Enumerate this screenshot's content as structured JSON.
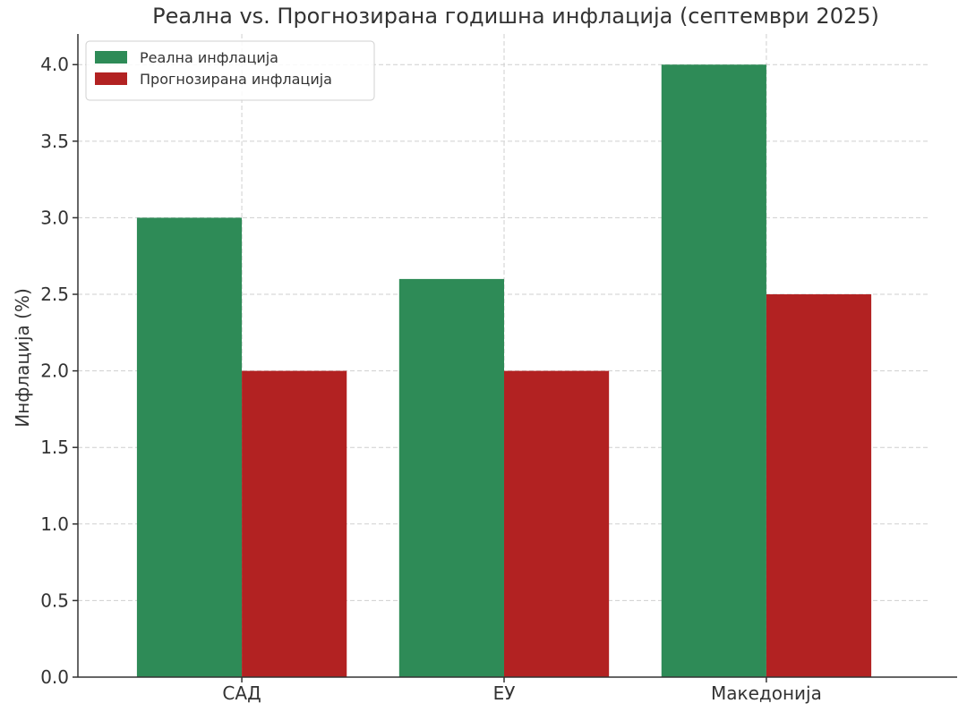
{
  "chart_data": {
    "type": "bar",
    "title": "Реална vs. Прогнозирана годишна инфлација (септември 2025)",
    "xlabel": "",
    "ylabel": "Инфлација (%)",
    "categories": [
      "САД",
      "ЕУ",
      "Македонија"
    ],
    "series": [
      {
        "name": "Реална инфлација",
        "values": [
          3.0,
          2.6,
          4.0
        ],
        "color": "#2e8b57"
      },
      {
        "name": "Прогнозирана инфлација",
        "values": [
          2.0,
          2.0,
          2.5
        ],
        "color": "#b22222"
      }
    ],
    "ylim": [
      0,
      4.2
    ],
    "yticks": [
      "0.0",
      "0.5",
      "1.0",
      "1.5",
      "2.0",
      "2.5",
      "3.0",
      "3.5",
      "4.0"
    ],
    "grid": true,
    "legend_position": "top-left"
  }
}
